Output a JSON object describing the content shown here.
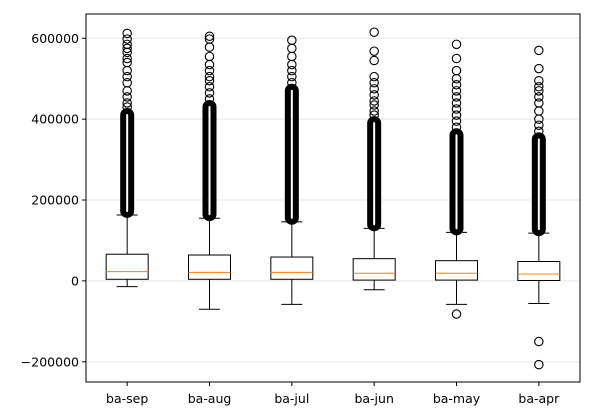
{
  "chart_data": {
    "type": "boxplot",
    "title": "",
    "xlabel": "",
    "ylabel": "",
    "ylim": [
      -250000,
      660000
    ],
    "yticks": [
      -200000,
      0,
      200000,
      400000,
      600000
    ],
    "ytick_labels": [
      "−200000",
      "0",
      "200000",
      "400000",
      "600000"
    ],
    "grid": "horizontal",
    "colors": {
      "box": "#000000",
      "median": "#ff7f0e",
      "grid": "#e6e6e6"
    },
    "categories": [
      "ba-sep",
      "ba-aug",
      "ba-jul",
      "ba-jun",
      "ba-may",
      "ba-apr"
    ],
    "boxes": [
      {
        "whislo": -14000,
        "q1": 4000,
        "med": 23000,
        "q3": 66000,
        "whishi": 163000,
        "dense_fliers": [
          163000,
          420000
        ],
        "fliers": [
          430000,
          440000,
          455000,
          470000,
          490000,
          505000,
          520000,
          540000,
          550000,
          565000,
          575000,
          585000,
          598000,
          612000
        ]
      },
      {
        "whislo": -70000,
        "q1": 4000,
        "med": 21000,
        "q3": 64000,
        "whishi": 155000,
        "dense_fliers": [
          155000,
          440000
        ],
        "fliers": [
          450000,
          465000,
          480000,
          495000,
          505000,
          520000,
          535000,
          555000,
          578000,
          598000,
          605000
        ]
      },
      {
        "whislo": -58000,
        "q1": 4000,
        "med": 21000,
        "q3": 59000,
        "whishi": 146000,
        "dense_fliers": [
          146000,
          480000
        ],
        "fliers": [
          490000,
          505000,
          520000,
          535000,
          555000,
          575000,
          595000
        ]
      },
      {
        "whislo": -22000,
        "q1": 2000,
        "med": 19000,
        "q3": 55000,
        "whishi": 130000,
        "dense_fliers": [
          130000,
          400000
        ],
        "fliers": [
          410000,
          420000,
          435000,
          445000,
          460000,
          475000,
          490000,
          505000,
          545000,
          568000,
          615000
        ]
      },
      {
        "whislo": -58000,
        "q1": 2000,
        "med": 19000,
        "q3": 50000,
        "whishi": 120000,
        "dense_fliers": [
          120000,
          370000
        ],
        "fliers": [
          -82000,
          380000,
          395000,
          410000,
          425000,
          440000,
          455000,
          470000,
          485000,
          500000,
          520000,
          550000,
          585000
        ]
      },
      {
        "whislo": -56000,
        "q1": 1000,
        "med": 17000,
        "q3": 48000,
        "whishi": 118000,
        "dense_fliers": [
          118000,
          360000
        ],
        "fliers": [
          -207000,
          -150000,
          370000,
          385000,
          400000,
          420000,
          440000,
          455000,
          470000,
          480000,
          495000,
          525000,
          570000
        ]
      }
    ]
  }
}
